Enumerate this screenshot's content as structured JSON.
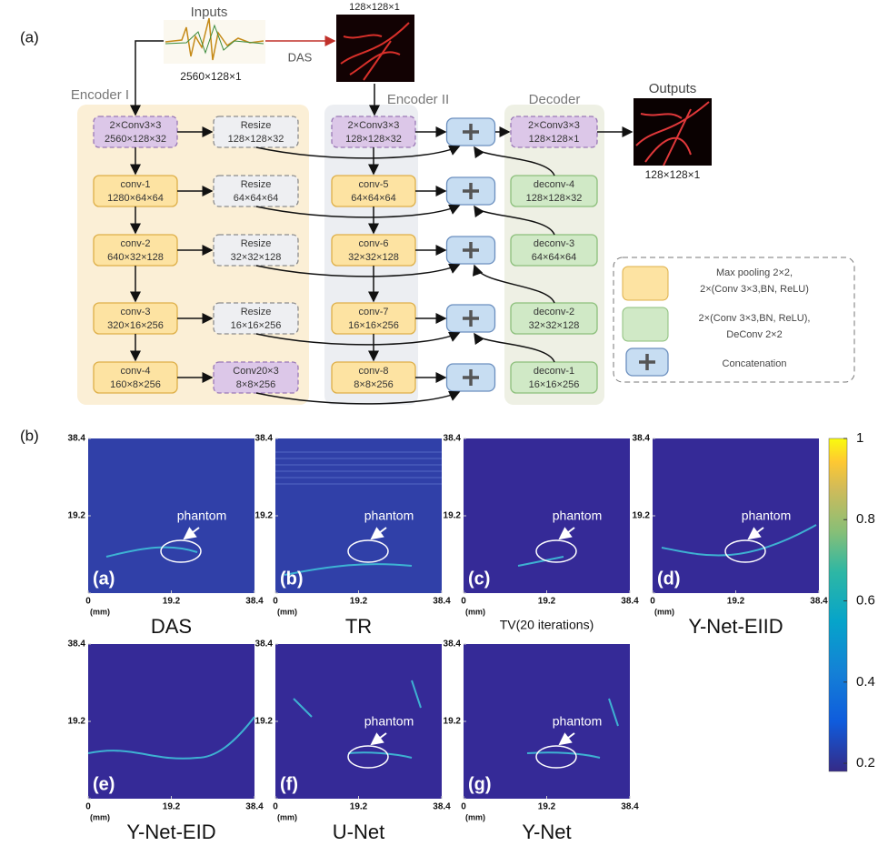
{
  "figure_a": {
    "label": "(a)",
    "inputs": {
      "title": "Inputs",
      "size": "2560×128×1"
    },
    "das_arrow": "DAS",
    "das_image": {
      "size": "128×128×1"
    },
    "outputs": {
      "title": "Outputs",
      "size": "128×128×1"
    },
    "encoder_1": {
      "title": "Encoder I",
      "nodes": [
        {
          "name": "2×Conv3×3",
          "size": "2560×128×32"
        },
        {
          "name": "conv-1",
          "size": "1280×64×64"
        },
        {
          "name": "conv-2",
          "size": "640×32×128"
        },
        {
          "name": "conv-3",
          "size": "320×16×256"
        },
        {
          "name": "conv-4",
          "size": "160×8×256"
        }
      ]
    },
    "resize": {
      "nodes": [
        {
          "name": "Resize",
          "size": "128×128×32"
        },
        {
          "name": "Resize",
          "size": "64×64×64"
        },
        {
          "name": "Resize",
          "size": "32×32×128"
        },
        {
          "name": "Resize",
          "size": "16×16×256"
        },
        {
          "name": "Conv20×3",
          "size": "8×8×256"
        }
      ]
    },
    "encoder_2": {
      "title": "Encoder II",
      "nodes": [
        {
          "name": "2×Conv3×3",
          "size": "128×128×32"
        },
        {
          "name": "conv-5",
          "size": "64×64×64"
        },
        {
          "name": "conv-6",
          "size": "32×32×128"
        },
        {
          "name": "conv-7",
          "size": "16×16×256"
        },
        {
          "name": "conv-8",
          "size": "8×8×256"
        }
      ]
    },
    "decoder": {
      "title": "Decoder",
      "nodes": [
        {
          "name": "2×Conv3×3",
          "size": "128×128×1"
        },
        {
          "name": "deconv-4",
          "size": "128×128×32"
        },
        {
          "name": "deconv-3",
          "size": "64×64×64"
        },
        {
          "name": "deconv-2",
          "size": "32×32×128"
        },
        {
          "name": "deconv-1",
          "size": "16×16×256"
        }
      ]
    },
    "legend": {
      "items": [
        {
          "lines": [
            "Max pooling 2×2,",
            "2×(Conv 3×3,BN, ReLU)"
          ]
        },
        {
          "lines": [
            "2×(Conv 3×3,BN, ReLU),",
            "DeConv 2×2"
          ]
        },
        {
          "lines": [
            "Concatenation"
          ]
        }
      ]
    }
  },
  "figure_b": {
    "label": "(b)",
    "axis": {
      "lim": [
        0,
        38.4
      ],
      "ticks": [
        0,
        19.2,
        38.4
      ],
      "unit": "(mm)"
    },
    "panels": [
      {
        "tag": "(a)",
        "title": "DAS",
        "annotation": "phantom"
      },
      {
        "tag": "(b)",
        "title": "TR",
        "annotation": "phantom"
      },
      {
        "tag": "(c)",
        "title": "TV(20 iterations)",
        "annotation": "phantom"
      },
      {
        "tag": "(d)",
        "title": "Y-Net-EIID",
        "annotation": "phantom"
      },
      {
        "tag": "(e)",
        "title": "Y-Net-EID"
      },
      {
        "tag": "(f)",
        "title": "U-Net",
        "annotation": "phantom"
      },
      {
        "tag": "(g)",
        "title": "Y-Net",
        "annotation": "phantom"
      }
    ],
    "colorbar": {
      "lim": [
        0.18,
        1
      ],
      "ticks": [
        1,
        0.8,
        0.6,
        0.4,
        0.2
      ]
    }
  }
}
